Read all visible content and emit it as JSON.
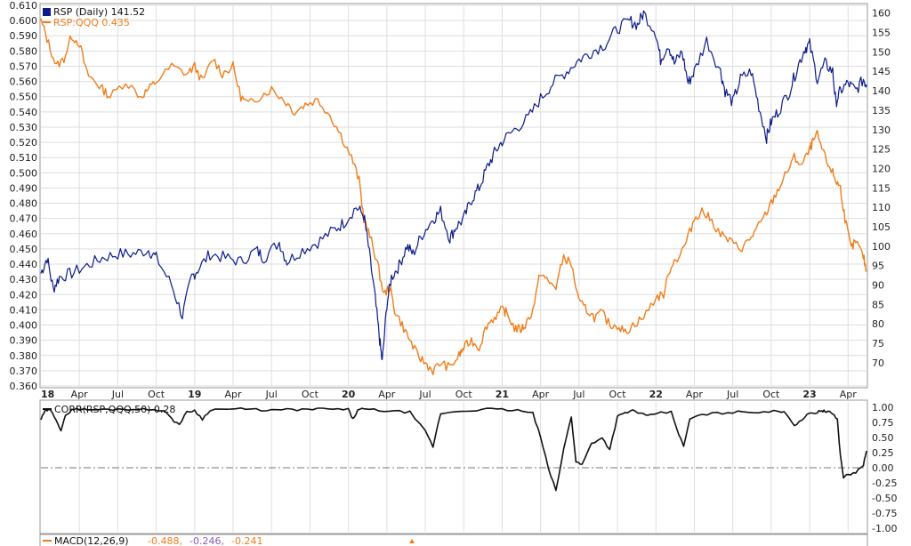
{
  "colors": {
    "rsp": "#0b1a8c",
    "ratio": "#f07d1a",
    "corr": "#111111",
    "macd": "#f07d1a",
    "macd_signal": "#8a5bb8",
    "macd_hist": "#f07d1a",
    "grid": "#dedede",
    "zero": "#777777"
  },
  "legend": {
    "rsp": "RSP (Daily) 141.52",
    "ratio": "RSP:QQQ 0.435",
    "corr": "CORR(RSP,QQQ,50) 0.28",
    "macd_label": "MACD(12,26,9)",
    "macd_v1": "-0.488,",
    "macd_v2": "-0.246,",
    "macd_v3": "-0.241"
  },
  "chart_data": [
    {
      "type": "line",
      "grid": true,
      "x_tick_labels": [
        "18",
        "Apr",
        "Jul",
        "Oct",
        "19",
        "Apr",
        "Jul",
        "Oct",
        "20",
        "Apr",
        "Jul",
        "Oct",
        "21",
        "Apr",
        "Jul",
        "Oct",
        "22",
        "Apr",
        "Jul",
        "Oct",
        "23",
        "Apr"
      ],
      "x_tick_dates": [
        2018.0,
        2018.25,
        2018.5,
        2018.75,
        2019.0,
        2019.25,
        2019.5,
        2019.75,
        2020.0,
        2020.25,
        2020.5,
        2020.75,
        2021.0,
        2021.25,
        2021.5,
        2021.75,
        2022.0,
        2022.25,
        2022.5,
        2022.75,
        2023.0,
        2023.25
      ],
      "xlim": [
        2018.0,
        2023.37
      ],
      "y_left": {
        "lim": [
          0.36,
          0.61
        ],
        "ticks": [
          "0.610",
          "0.600",
          "0.590",
          "0.580",
          "0.570",
          "0.560",
          "0.550",
          "0.540",
          "0.530",
          "0.520",
          "0.510",
          "0.500",
          "0.490",
          "0.480",
          "0.470",
          "0.460",
          "0.450",
          "0.440",
          "0.430",
          "0.420",
          "0.410",
          "0.400",
          "0.390",
          "0.380",
          "0.370",
          "0.360"
        ]
      },
      "y_right": {
        "lim": [
          64,
          162
        ],
        "ticks": [
          "160",
          "155",
          "150",
          "145",
          "140",
          "135",
          "130",
          "125",
          "120",
          "115",
          "110",
          "105",
          "100",
          "95",
          "90",
          "85",
          "80",
          "75",
          "70"
        ]
      },
      "series": [
        {
          "name": "RSP (Daily) 141.52",
          "axis": "right",
          "x": [
            2018.0,
            2018.04,
            2018.08,
            2018.12,
            2018.2,
            2018.3,
            2018.4,
            2018.5,
            2018.6,
            2018.7,
            2018.75,
            2018.85,
            2018.92,
            2018.98,
            2019.02,
            2019.1,
            2019.2,
            2019.3,
            2019.4,
            2019.45,
            2019.55,
            2019.6,
            2019.7,
            2019.8,
            2019.9,
            2019.97,
            2020.05,
            2020.1,
            2020.13,
            2020.17,
            2020.2,
            2020.22,
            2020.25,
            2020.28,
            2020.33,
            2020.38,
            2020.42,
            2020.48,
            2020.55,
            2020.6,
            2020.66,
            2020.7,
            2020.75,
            2020.8,
            2020.85,
            2020.9,
            2020.95,
            2021.0,
            2021.08,
            2021.17,
            2021.25,
            2021.33,
            2021.42,
            2021.5,
            2021.58,
            2021.67,
            2021.75,
            2021.83,
            2021.88,
            2021.92,
            2022.0,
            2022.03,
            2022.08,
            2022.12,
            2022.17,
            2022.21,
            2022.25,
            2022.33,
            2022.42,
            2022.45,
            2022.5,
            2022.55,
            2022.62,
            2022.67,
            2022.72,
            2022.75,
            2022.8,
            2022.87,
            2022.92,
            2022.97,
            2023.0,
            2023.05,
            2023.1,
            2023.15,
            2023.17,
            2023.2,
            2023.25,
            2023.3,
            2023.35,
            2023.37
          ],
          "values": [
            93,
            97,
            89,
            92,
            93,
            95,
            97,
            98,
            98,
            99,
            97,
            90,
            82,
            92,
            94,
            98,
            97,
            96,
            99,
            97,
            101,
            96,
            99,
            101,
            104,
            106,
            110,
            108,
            100,
            88,
            77,
            70,
            85,
            92,
            95,
            100,
            98,
            103,
            107,
            109,
            102,
            105,
            107,
            112,
            115,
            120,
            124,
            127,
            130,
            133,
            138,
            142,
            145,
            148,
            150,
            152,
            156,
            158,
            157,
            160,
            155,
            148,
            152,
            147,
            150,
            142,
            145,
            153,
            145,
            140,
            137,
            143,
            145,
            136,
            128,
            132,
            135,
            140,
            146,
            151,
            152,
            143,
            147,
            145,
            137,
            140,
            142,
            140,
            143,
            141.52
          ]
        },
        {
          "name": "RSP:QQQ 0.435",
          "axis": "left",
          "x": [
            2018.0,
            2018.05,
            2018.1,
            2018.15,
            2018.2,
            2018.25,
            2018.3,
            2018.35,
            2018.4,
            2018.45,
            2018.55,
            2018.65,
            2018.7,
            2018.75,
            2018.85,
            2018.95,
            2019.0,
            2019.05,
            2019.12,
            2019.18,
            2019.25,
            2019.3,
            2019.35,
            2019.42,
            2019.5,
            2019.58,
            2019.65,
            2019.72,
            2019.8,
            2019.88,
            2019.95,
            2020.02,
            2020.07,
            2020.1,
            2020.15,
            2020.19,
            2020.23,
            2020.27,
            2020.3,
            2020.35,
            2020.4,
            2020.45,
            2020.5,
            2020.55,
            2020.6,
            2020.66,
            2020.72,
            2020.75,
            2020.8,
            2020.85,
            2020.9,
            2020.95,
            2021.0,
            2021.03,
            2021.08,
            2021.12,
            2021.15,
            2021.2,
            2021.25,
            2021.3,
            2021.35,
            2021.4,
            2021.45,
            2021.5,
            2021.55,
            2021.6,
            2021.65,
            2021.7,
            2021.75,
            2021.8,
            2021.85,
            2021.92,
            2022.0,
            2022.05,
            2022.1,
            2022.15,
            2022.2,
            2022.25,
            2022.3,
            2022.35,
            2022.42,
            2022.48,
            2022.55,
            2022.6,
            2022.65,
            2022.7,
            2022.75,
            2022.8,
            2022.85,
            2022.9,
            2022.95,
            2023.0,
            2023.02,
            2023.05,
            2023.1,
            2023.15,
            2023.17,
            2023.2,
            2023.23,
            2023.27,
            2023.3,
            2023.35,
            2023.37
          ],
          "values": [
            0.6,
            0.585,
            0.57,
            0.575,
            0.59,
            0.585,
            0.565,
            0.56,
            0.555,
            0.55,
            0.56,
            0.55,
            0.555,
            0.56,
            0.57,
            0.565,
            0.57,
            0.56,
            0.575,
            0.565,
            0.57,
            0.55,
            0.545,
            0.55,
            0.555,
            0.548,
            0.54,
            0.545,
            0.548,
            0.538,
            0.525,
            0.51,
            0.495,
            0.47,
            0.455,
            0.44,
            0.42,
            0.425,
            0.41,
            0.4,
            0.39,
            0.38,
            0.375,
            0.37,
            0.375,
            0.372,
            0.38,
            0.385,
            0.39,
            0.385,
            0.4,
            0.405,
            0.41,
            0.408,
            0.398,
            0.397,
            0.4,
            0.41,
            0.435,
            0.428,
            0.425,
            0.445,
            0.44,
            0.415,
            0.41,
            0.405,
            0.408,
            0.4,
            0.4,
            0.395,
            0.4,
            0.405,
            0.418,
            0.42,
            0.44,
            0.445,
            0.455,
            0.47,
            0.475,
            0.47,
            0.46,
            0.455,
            0.45,
            0.455,
            0.462,
            0.47,
            0.48,
            0.49,
            0.5,
            0.51,
            0.505,
            0.515,
            0.52,
            0.525,
            0.51,
            0.5,
            0.495,
            0.49,
            0.47,
            0.45,
            0.455,
            0.445,
            0.435
          ]
        }
      ]
    },
    {
      "type": "line",
      "grid": true,
      "xlim": [
        2018.0,
        2023.37
      ],
      "ylim": [
        -1.0,
        1.0
      ],
      "y_ticks": [
        "1.00",
        "0.75",
        "0.50",
        "0.25",
        "0.00",
        "-0.25",
        "-0.50",
        "-0.75",
        "-1.00"
      ],
      "zero_line": true,
      "series": [
        {
          "name": "CORR(RSP,QQQ,50) 0.28",
          "x": [
            2018.0,
            2018.03,
            2018.06,
            2018.1,
            2018.13,
            2018.16,
            2018.2,
            2018.25,
            2018.3,
            2018.4,
            2018.5,
            2018.6,
            2018.7,
            2018.8,
            2018.85,
            2018.9,
            2018.95,
            2019.0,
            2019.05,
            2019.1,
            2019.2,
            2019.3,
            2019.4,
            2019.5,
            2019.6,
            2019.7,
            2019.8,
            2019.9,
            2020.0,
            2020.03,
            2020.06,
            2020.1,
            2020.2,
            2020.3,
            2020.4,
            2020.5,
            2020.55,
            2020.6,
            2020.7,
            2020.8,
            2020.9,
            2021.0,
            2021.1,
            2021.2,
            2021.25,
            2021.3,
            2021.35,
            2021.4,
            2021.45,
            2021.48,
            2021.52,
            2021.58,
            2021.65,
            2021.7,
            2021.75,
            2021.8,
            2021.85,
            2021.9,
            2021.95,
            2022.0,
            2022.1,
            2022.15,
            2022.18,
            2022.22,
            2022.3,
            2022.4,
            2022.5,
            2022.6,
            2022.7,
            2022.8,
            2022.85,
            2022.9,
            2022.95,
            2023.0,
            2023.05,
            2023.08,
            2023.1,
            2023.12,
            2023.15,
            2023.18,
            2023.2,
            2023.22,
            2023.25,
            2023.3,
            2023.35,
            2023.37
          ],
          "values": [
            0.8,
            0.95,
            0.95,
            0.8,
            0.62,
            0.85,
            0.97,
            0.97,
            0.96,
            0.96,
            0.97,
            0.97,
            0.96,
            0.96,
            0.8,
            0.72,
            0.92,
            0.95,
            0.8,
            0.96,
            0.97,
            0.97,
            0.96,
            0.95,
            0.96,
            0.96,
            0.97,
            0.97,
            0.96,
            0.8,
            0.95,
            0.97,
            0.95,
            0.93,
            0.92,
            0.6,
            0.35,
            0.9,
            0.93,
            0.95,
            0.97,
            0.96,
            0.95,
            0.9,
            0.5,
            0.0,
            -0.38,
            0.3,
            0.85,
            0.1,
            0.05,
            0.4,
            0.5,
            0.3,
            0.85,
            0.9,
            0.95,
            0.9,
            0.85,
            0.9,
            0.92,
            0.55,
            0.35,
            0.8,
            0.88,
            0.9,
            0.92,
            0.92,
            0.93,
            0.93,
            0.9,
            0.7,
            0.8,
            0.9,
            0.92,
            0.95,
            0.93,
            0.92,
            0.9,
            0.8,
            0.2,
            -0.15,
            -0.12,
            -0.08,
            0.05,
            0.28
          ]
        }
      ]
    }
  ]
}
